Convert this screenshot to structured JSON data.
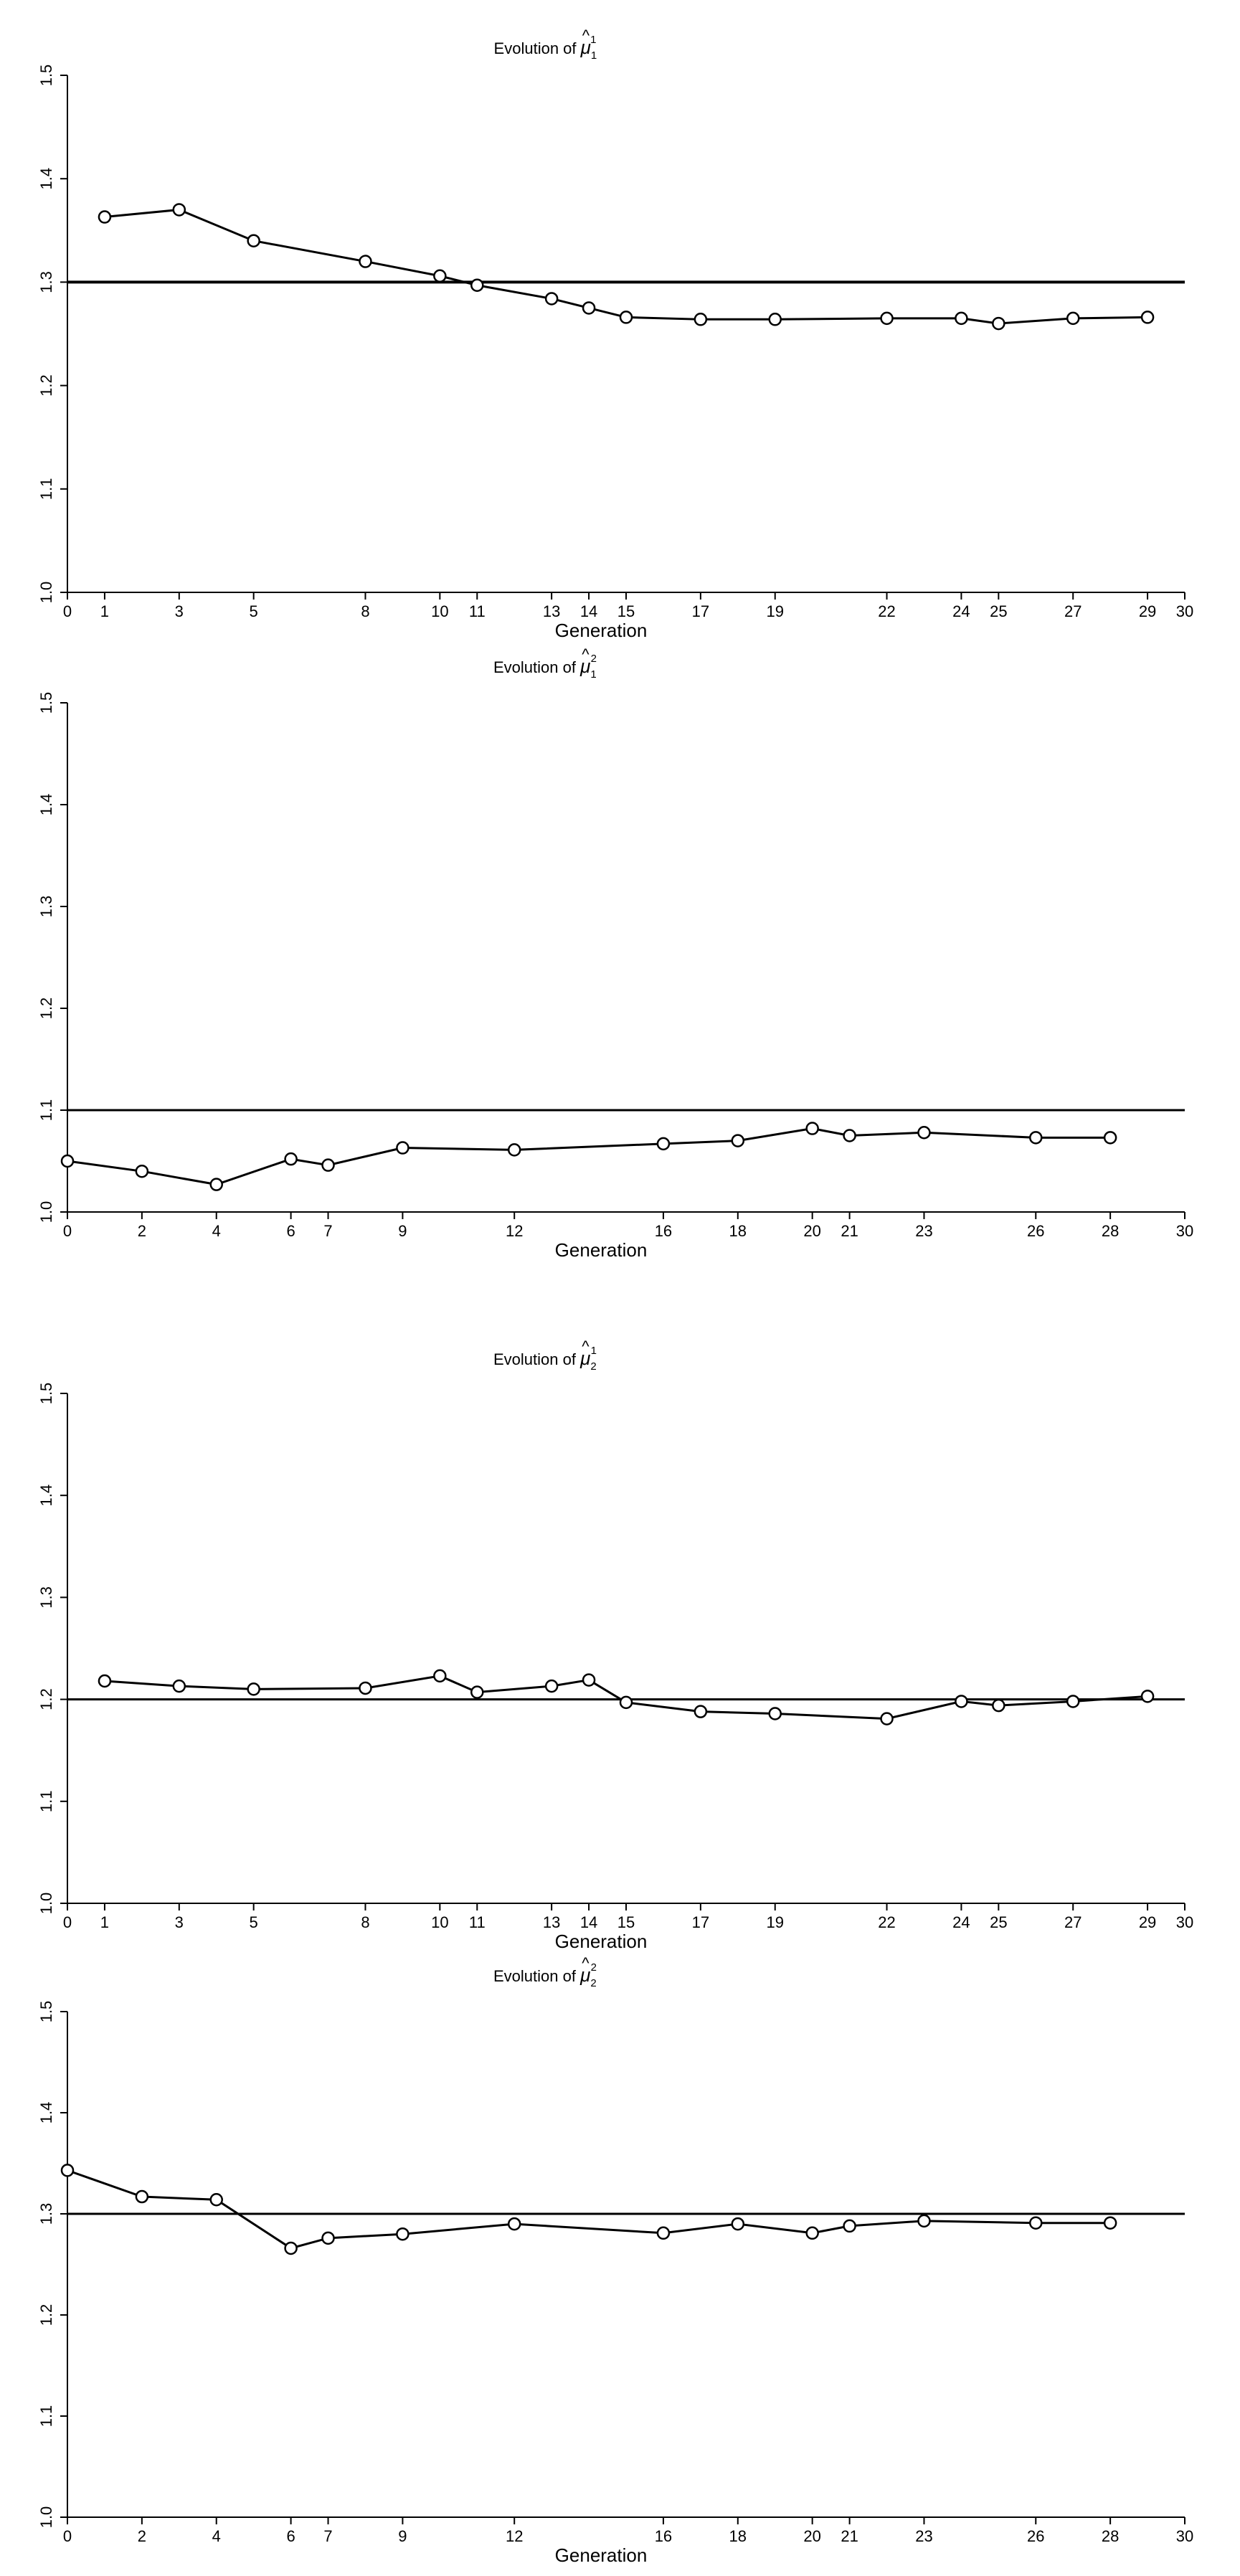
{
  "chart_data": [
    {
      "type": "line",
      "title": {
        "prefix": "Evolution of",
        "symbol": "μ",
        "sub": "1",
        "sup": "1"
      },
      "xlabel": "Generation",
      "xlim": [
        0,
        30
      ],
      "ylim": [
        1.0,
        1.5
      ],
      "x_ticks": [
        0,
        1,
        3,
        5,
        8,
        10,
        11,
        13,
        14,
        15,
        17,
        19,
        22,
        24,
        25,
        27,
        29,
        30
      ],
      "y_ticks": [
        "1.0",
        "1.1",
        "1.2",
        "1.3",
        "1.4",
        "1.5"
      ],
      "reference_line": 1.3,
      "series": [
        {
          "x": [
            1,
            3,
            5,
            8,
            10,
            11,
            13,
            14,
            15,
            17,
            19,
            22,
            24,
            25,
            27,
            29
          ],
          "values": [
            1.363,
            1.37,
            1.34,
            1.32,
            1.306,
            1.297,
            1.284,
            1.275,
            1.266,
            1.264,
            1.264,
            1.265,
            1.265,
            1.26,
            1.265,
            1.266
          ]
        }
      ]
    },
    {
      "type": "line",
      "title": {
        "prefix": "Evolution of",
        "symbol": "μ",
        "sub": "1",
        "sup": "2"
      },
      "xlabel": "Generation",
      "xlim": [
        0,
        30
      ],
      "ylim": [
        1.0,
        1.5
      ],
      "x_ticks": [
        0,
        2,
        4,
        6,
        7,
        9,
        12,
        16,
        18,
        20,
        21,
        23,
        26,
        28,
        30
      ],
      "y_ticks": [
        "1.0",
        "1.1",
        "1.2",
        "1.3",
        "1.4",
        "1.5"
      ],
      "reference_line": 1.1,
      "series": [
        {
          "x": [
            0,
            2,
            4,
            6,
            7,
            9,
            12,
            16,
            18,
            20,
            21,
            23,
            26,
            28
          ],
          "values": [
            1.05,
            1.04,
            1.027,
            1.052,
            1.046,
            1.063,
            1.061,
            1.067,
            1.07,
            1.082,
            1.075,
            1.078,
            1.073,
            1.073
          ]
        }
      ]
    },
    {
      "type": "line",
      "title": {
        "prefix": "Evolution of",
        "symbol": "μ",
        "sub": "2",
        "sup": "1"
      },
      "xlabel": "Generation",
      "xlim": [
        0,
        30
      ],
      "ylim": [
        1.0,
        1.5
      ],
      "x_ticks": [
        0,
        1,
        3,
        5,
        8,
        10,
        11,
        13,
        14,
        15,
        17,
        19,
        22,
        24,
        25,
        27,
        29,
        30
      ],
      "y_ticks": [
        "1.0",
        "1.1",
        "1.2",
        "1.3",
        "1.4",
        "1.5"
      ],
      "reference_line": 1.2,
      "series": [
        {
          "x": [
            1,
            3,
            5,
            8,
            10,
            11,
            13,
            14,
            15,
            17,
            19,
            22,
            24,
            25,
            27,
            29
          ],
          "values": [
            1.218,
            1.213,
            1.21,
            1.211,
            1.223,
            1.207,
            1.213,
            1.219,
            1.197,
            1.188,
            1.186,
            1.181,
            1.198,
            1.194,
            1.198,
            1.203
          ]
        }
      ]
    },
    {
      "type": "line",
      "title": {
        "prefix": "Evolution of",
        "symbol": "μ",
        "sub": "2",
        "sup": "2"
      },
      "xlabel": "Generation",
      "xlim": [
        0,
        30
      ],
      "ylim": [
        1.0,
        1.5
      ],
      "x_ticks": [
        0,
        2,
        4,
        6,
        7,
        9,
        12,
        16,
        18,
        20,
        21,
        23,
        26,
        28,
        30
      ],
      "y_ticks": [
        "1.0",
        "1.1",
        "1.2",
        "1.3",
        "1.4",
        "1.5"
      ],
      "reference_line": 1.3,
      "series": [
        {
          "x": [
            0,
            2,
            4,
            6,
            7,
            9,
            12,
            16,
            18,
            20,
            21,
            23,
            26,
            28
          ],
          "values": [
            1.343,
            1.317,
            1.314,
            1.266,
            1.276,
            1.28,
            1.29,
            1.281,
            1.29,
            1.281,
            1.288,
            1.293,
            1.291,
            1.291
          ]
        }
      ]
    }
  ]
}
